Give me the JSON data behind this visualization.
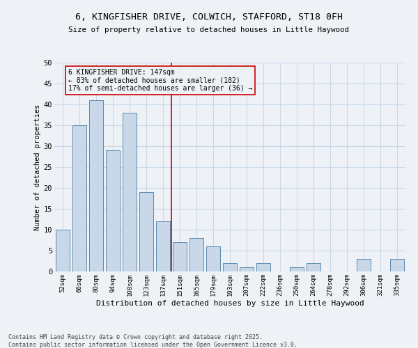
{
  "title_line1": "6, KINGFISHER DRIVE, COLWICH, STAFFORD, ST18 0FH",
  "title_line2": "Size of property relative to detached houses in Little Haywood",
  "xlabel": "Distribution of detached houses by size in Little Haywood",
  "ylabel": "Number of detached properties",
  "categories": [
    "52sqm",
    "66sqm",
    "80sqm",
    "94sqm",
    "108sqm",
    "123sqm",
    "137sqm",
    "151sqm",
    "165sqm",
    "179sqm",
    "193sqm",
    "207sqm",
    "222sqm",
    "236sqm",
    "250sqm",
    "264sqm",
    "278sqm",
    "292sqm",
    "306sqm",
    "321sqm",
    "335sqm"
  ],
  "values": [
    10,
    35,
    41,
    29,
    38,
    19,
    12,
    7,
    8,
    6,
    2,
    1,
    2,
    0,
    1,
    2,
    0,
    0,
    3,
    0,
    3
  ],
  "bar_color": "#c8d8e8",
  "bar_edge_color": "#5a8ab0",
  "vline_color": "#cc0000",
  "annotation_text": "6 KINGFISHER DRIVE: 147sqm\n← 83% of detached houses are smaller (182)\n17% of semi-detached houses are larger (36) →",
  "annotation_box_color": "#cc0000",
  "ylim": [
    0,
    50
  ],
  "yticks": [
    0,
    5,
    10,
    15,
    20,
    25,
    30,
    35,
    40,
    45,
    50
  ],
  "grid_color": "#c8d8ea",
  "background_color": "#eef2f7",
  "footer_line1": "Contains HM Land Registry data © Crown copyright and database right 2025.",
  "footer_line2": "Contains public sector information licensed under the Open Government Licence v3.0.",
  "figsize": [
    6.0,
    5.0
  ],
  "dpi": 100
}
